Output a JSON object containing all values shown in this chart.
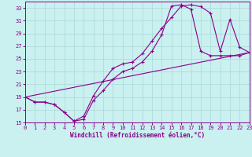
{
  "xlabel": "Windchill (Refroidissement éolien,°C)",
  "bg_color": "#caf0f0",
  "line_color": "#880088",
  "grid_color": "#a8d8d8",
  "xlim": [
    0,
    23
  ],
  "ylim": [
    15,
    34
  ],
  "xticks": [
    0,
    1,
    2,
    3,
    4,
    5,
    6,
    7,
    8,
    9,
    10,
    11,
    12,
    13,
    14,
    15,
    16,
    17,
    18,
    19,
    20,
    21,
    22,
    23
  ],
  "yticks": [
    15,
    17,
    19,
    21,
    23,
    25,
    27,
    29,
    31,
    33
  ],
  "curve1_x": [
    0,
    1,
    2,
    3,
    4,
    5,
    6,
    7,
    8,
    9,
    10,
    11,
    12,
    13,
    14,
    15,
    16,
    17,
    18,
    19,
    20,
    21,
    22,
    23
  ],
  "curve1_y": [
    19.0,
    18.2,
    18.2,
    17.8,
    16.6,
    15.2,
    16.0,
    19.2,
    21.5,
    23.5,
    24.2,
    24.5,
    25.8,
    27.8,
    29.8,
    31.5,
    33.3,
    33.5,
    33.2,
    32.2,
    26.2,
    31.2,
    26.8,
    26.0
  ],
  "curve2_x": [
    0,
    1,
    2,
    3,
    4,
    5,
    6,
    7,
    8,
    9,
    10,
    11,
    12,
    13,
    14,
    15,
    16,
    17,
    18,
    19,
    20,
    21,
    22,
    23
  ],
  "curve2_y": [
    19.0,
    18.2,
    18.2,
    17.8,
    16.6,
    15.2,
    15.5,
    18.5,
    20.0,
    21.8,
    23.0,
    23.5,
    24.5,
    26.2,
    28.8,
    33.3,
    33.5,
    32.8,
    26.2,
    25.5,
    25.5,
    25.5,
    25.5,
    26.0
  ],
  "line3_x": [
    0,
    23
  ],
  "line3_y": [
    19.0,
    26.0
  ]
}
